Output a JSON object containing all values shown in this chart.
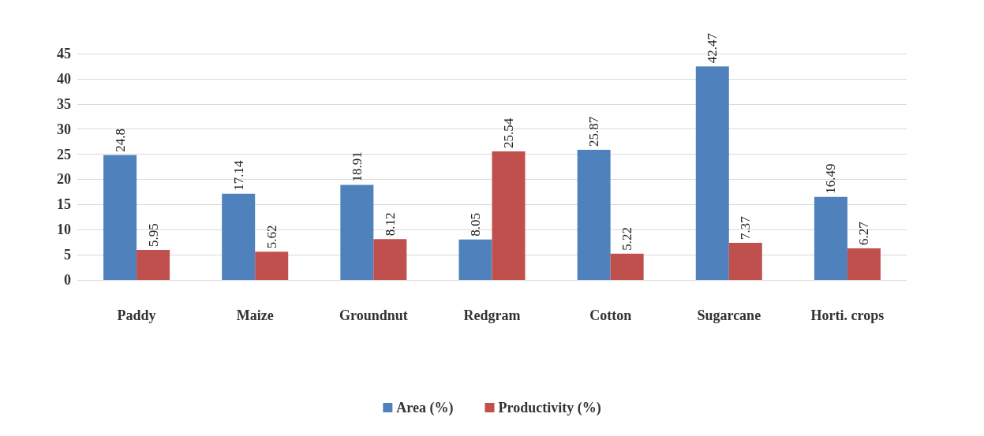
{
  "chart_data": {
    "type": "bar",
    "categories": [
      "Paddy",
      "Maize",
      "Groundnut",
      "Redgram",
      "Cotton",
      "Sugarcane",
      "Horti. crops"
    ],
    "series": [
      {
        "name": "Area (%)",
        "color": "#4f81bd",
        "values": [
          24.8,
          17.14,
          18.91,
          8.05,
          25.87,
          42.47,
          16.49
        ]
      },
      {
        "name": "Productivity (%)",
        "color": "#c0504d",
        "values": [
          5.95,
          5.62,
          8.12,
          25.54,
          5.22,
          7.37,
          6.27
        ]
      }
    ],
    "ylim": [
      0,
      45
    ],
    "yticks": [
      0,
      5,
      10,
      15,
      20,
      25,
      30,
      35,
      40,
      45
    ],
    "grid": "y",
    "legend": "bottom",
    "data_labels": true
  }
}
